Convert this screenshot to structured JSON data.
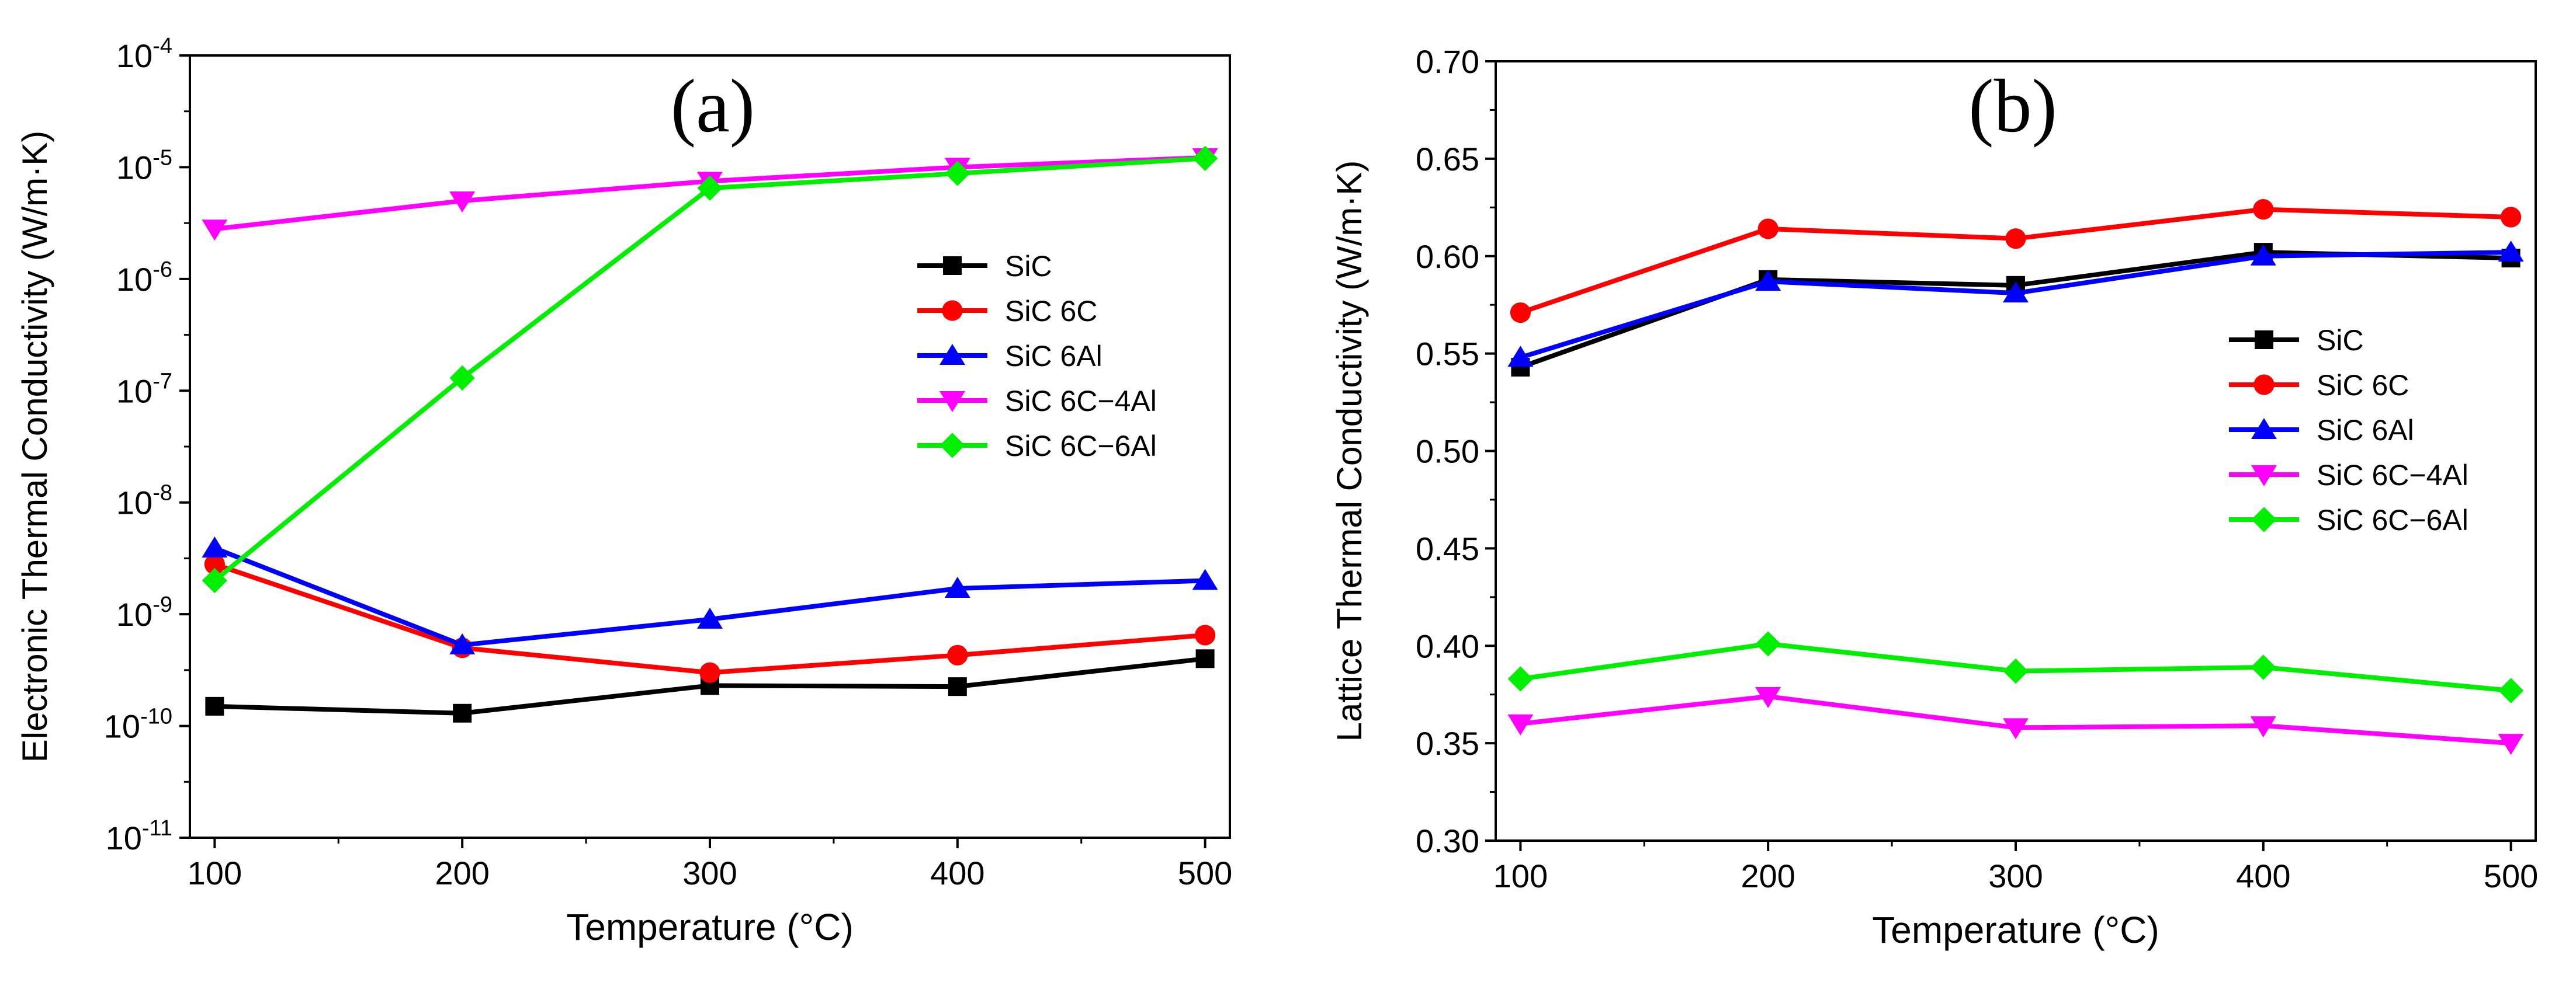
{
  "chart_data": [
    {
      "type": "line",
      "panel_label": "(a)",
      "xlabel": "Temperature (°C)",
      "ylabel": "Electronic Thermal Conductivity (W/m·K)",
      "yscale": "log",
      "xlim": [
        90,
        510
      ],
      "ylim": [
        1e-11,
        0.0001
      ],
      "x": [
        100,
        200,
        300,
        400,
        500
      ],
      "xticks": [
        "100",
        "200",
        "300",
        "400",
        "500"
      ],
      "yticks": [
        {
          "base": "10",
          "exp": "-11"
        },
        {
          "base": "10",
          "exp": "-10"
        },
        {
          "base": "10",
          "exp": "-9"
        },
        {
          "base": "10",
          "exp": "-8"
        },
        {
          "base": "10",
          "exp": "-7"
        },
        {
          "base": "10",
          "exp": "-6"
        },
        {
          "base": "10",
          "exp": "-5"
        },
        {
          "base": "10",
          "exp": "-4"
        }
      ],
      "legend_position": "right",
      "series": [
        {
          "name": "SiC",
          "color": "#000000",
          "marker": "square",
          "values": [
            1.5e-10,
            1.3e-10,
            2.3e-10,
            2.25e-10,
            4e-10
          ]
        },
        {
          "name": "SiC 6C",
          "color": "#ff0000",
          "marker": "circle",
          "values": [
            2.8e-09,
            5e-10,
            3e-10,
            4.3e-10,
            6.5e-10
          ]
        },
        {
          "name": "SiC 6Al",
          "color": "#0000ff",
          "marker": "triangle-up",
          "values": [
            3.9e-09,
            5.3e-10,
            9e-10,
            1.7e-09,
            2e-09
          ]
        },
        {
          "name": "SiC 6C−4Al",
          "color": "#ff00ff",
          "marker": "triangle-down",
          "values": [
            2.8e-06,
            5e-06,
            7.5e-06,
            1e-05,
            1.22e-05
          ]
        },
        {
          "name": "SiC 6C−6Al",
          "color": "#00ee00",
          "marker": "diamond",
          "values": [
            2e-09,
            1.3e-07,
            6.5e-06,
            8.8e-06,
            1.2e-05
          ]
        }
      ]
    },
    {
      "type": "line",
      "panel_label": "(b)",
      "xlabel": "Temperature (°C)",
      "ylabel": "Lattice Thermal Conductivity (W/m·K)",
      "yscale": "linear",
      "xlim": [
        90,
        510
      ],
      "ylim": [
        0.3,
        0.7
      ],
      "x": [
        100,
        200,
        300,
        400,
        500
      ],
      "xticks": [
        "100",
        "200",
        "300",
        "400",
        "500"
      ],
      "yticks": [
        "0.30",
        "0.35",
        "0.40",
        "0.45",
        "0.50",
        "0.55",
        "0.60",
        "0.65",
        "0.70"
      ],
      "legend_position": "right",
      "series": [
        {
          "name": "SiC",
          "color": "#000000",
          "marker": "square",
          "values": [
            0.543,
            0.588,
            0.585,
            0.602,
            0.599
          ]
        },
        {
          "name": "SiC 6C",
          "color": "#ff0000",
          "marker": "circle",
          "values": [
            0.571,
            0.614,
            0.609,
            0.624,
            0.62
          ]
        },
        {
          "name": "SiC 6Al",
          "color": "#0000ff",
          "marker": "triangle-up",
          "values": [
            0.548,
            0.587,
            0.581,
            0.6,
            0.602
          ]
        },
        {
          "name": "SiC 6C−4Al",
          "color": "#ff00ff",
          "marker": "triangle-down",
          "values": [
            0.36,
            0.374,
            0.358,
            0.359,
            0.35
          ]
        },
        {
          "name": "SiC 6C−6Al",
          "color": "#00ee00",
          "marker": "diamond",
          "values": [
            0.383,
            0.401,
            0.387,
            0.389,
            0.377
          ]
        }
      ]
    }
  ]
}
